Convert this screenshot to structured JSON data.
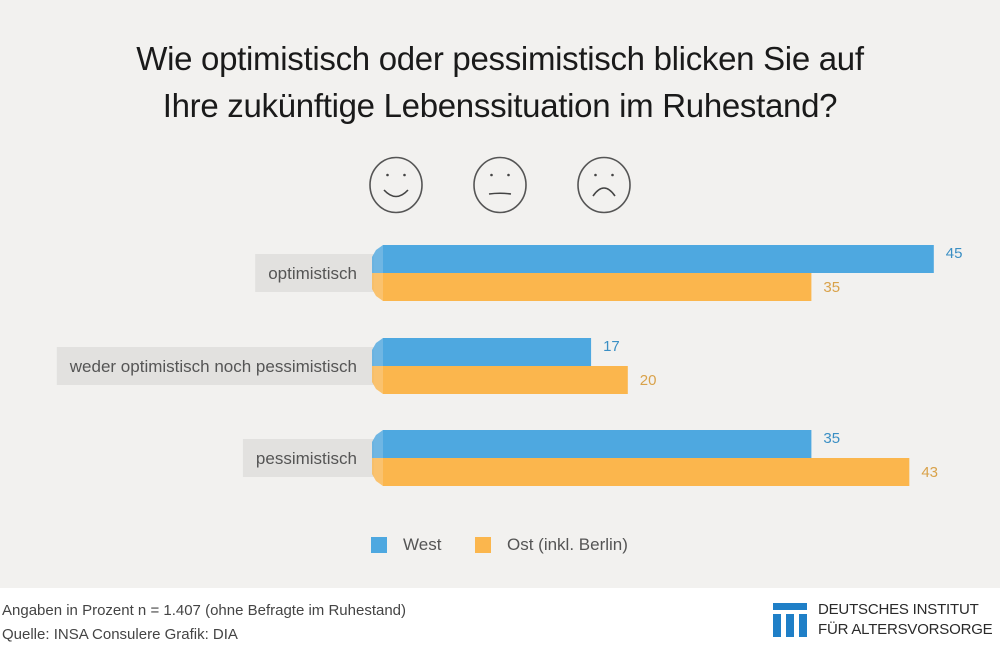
{
  "title_lines": [
    "Wie optimistisch oder pessimistisch blicken Sie auf",
    "Ihre zukünftige Lebenssituation im Ruhestand?"
  ],
  "icons": [
    "smiley-happy-icon",
    "smiley-neutral-icon",
    "smiley-sad-icon"
  ],
  "chart_data": {
    "type": "bar",
    "orientation": "horizontal",
    "title": "Wie optimistisch oder pessimistisch blicken Sie auf Ihre zukünftige Lebenssituation im Ruhestand?",
    "categories": [
      "optimistisch",
      "weder optimistisch noch pessimistisch",
      "pessimistisch"
    ],
    "series": [
      {
        "name": "West",
        "color": "#4ea8e0",
        "label_color": "#3b8fc4",
        "values": [
          45,
          17,
          35
        ]
      },
      {
        "name": "Ost (inkl. Berlin)",
        "color": "#fbb64d",
        "label_color": "#d9a24a",
        "values": [
          35,
          20,
          43
        ]
      }
    ],
    "xlabel": "",
    "ylabel": "",
    "unit": "Prozent",
    "grid": false,
    "legend_position": "bottom"
  },
  "legend": [
    {
      "label": "West",
      "color": "#4ea8e0"
    },
    {
      "label": "Ost (inkl. Berlin)",
      "color": "#fbb64d"
    }
  ],
  "footer": {
    "line1": "Angaben in Prozent  n = 1.407 (ohne Befragte im Ruhestand)",
    "line2": "Quelle: INSA Consulere  Grafik: DIA"
  },
  "logo": {
    "line1": "DEUTSCHES INSTITUT",
    "line2": "FÜR ALTERSVORSORGE",
    "color": "#1f7fc7"
  }
}
